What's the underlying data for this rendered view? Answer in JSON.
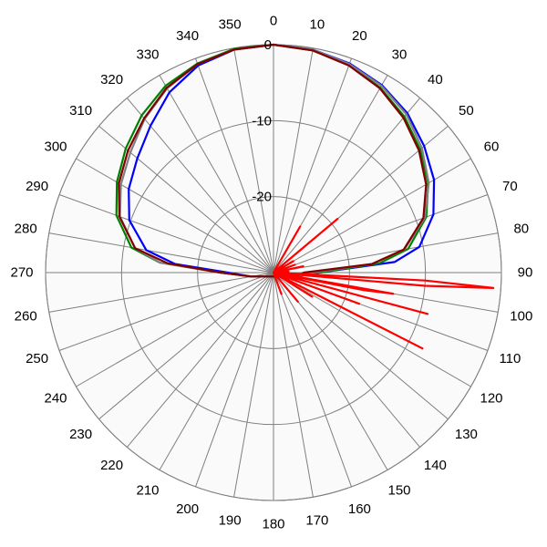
{
  "chart_data": {
    "type": "polar-line",
    "title": "",
    "angular_axis": {
      "unit": "degrees",
      "direction": "clockwise",
      "zero_at": "top",
      "tick_labels": [
        "0",
        "10",
        "20",
        "30",
        "40",
        "50",
        "60",
        "70",
        "80",
        "90",
        "100",
        "110",
        "120",
        "130",
        "140",
        "150",
        "160",
        "170",
        "180",
        "190",
        "200",
        "210",
        "220",
        "230",
        "240",
        "250",
        "260",
        "270",
        "280",
        "290",
        "300",
        "310",
        "320",
        "330",
        "340",
        "350"
      ]
    },
    "radial_axis": {
      "range": [
        -30,
        0
      ],
      "tick_labels": [
        "0",
        "-10",
        "-20"
      ],
      "ticks": [
        0,
        -10,
        -20
      ],
      "grid_rings": [
        0,
        -10,
        -20,
        -30
      ]
    },
    "background_color": "#fafafa",
    "grid": true,
    "series": [
      {
        "color": "#0000ff",
        "points": [
          [
            0,
            0
          ],
          [
            10,
            -0.2
          ],
          [
            20,
            -0.7
          ],
          [
            30,
            -1.5
          ],
          [
            40,
            -2.6
          ],
          [
            50,
            -4.1
          ],
          [
            60,
            -5.6
          ],
          [
            70,
            -7.6
          ],
          [
            80,
            -10.5
          ],
          [
            85,
            -14
          ],
          [
            90,
            -24
          ],
          [
            100,
            -27
          ],
          [
            260,
            -27
          ],
          [
            270,
            -24
          ],
          [
            275,
            -17
          ],
          [
            280,
            -13
          ],
          [
            290,
            -9.8
          ],
          [
            300,
            -8
          ],
          [
            310,
            -6.6
          ],
          [
            320,
            -4.8
          ],
          [
            330,
            -2.6
          ],
          [
            340,
            -1
          ],
          [
            350,
            -0.2
          ],
          [
            360,
            0
          ]
        ]
      },
      {
        "color": "#008000",
        "points": [
          [
            0,
            0
          ],
          [
            10,
            -0.3
          ],
          [
            20,
            -0.9
          ],
          [
            30,
            -1.9
          ],
          [
            40,
            -3.2
          ],
          [
            50,
            -4.8
          ],
          [
            60,
            -6.5
          ],
          [
            70,
            -8.6
          ],
          [
            80,
            -12
          ],
          [
            85,
            -16
          ],
          [
            90,
            -24
          ],
          [
            100,
            -27
          ],
          [
            260,
            -27
          ],
          [
            270,
            -23
          ],
          [
            275,
            -15
          ],
          [
            280,
            -11
          ],
          [
            290,
            -8
          ],
          [
            300,
            -6.2
          ],
          [
            310,
            -4.6
          ],
          [
            320,
            -3
          ],
          [
            330,
            -1.6
          ],
          [
            340,
            -0.7
          ],
          [
            350,
            -0.1
          ],
          [
            360,
            0
          ]
        ]
      },
      {
        "color": "#808080",
        "points": [
          [
            0,
            0
          ],
          [
            10,
            -0.2
          ],
          [
            20,
            -0.8
          ],
          [
            30,
            -1.6
          ],
          [
            40,
            -2.8
          ],
          [
            50,
            -4.5
          ],
          [
            60,
            -6.4
          ],
          [
            70,
            -8.8
          ],
          [
            80,
            -12.5
          ],
          [
            85,
            -17
          ],
          [
            90,
            -25
          ],
          [
            100,
            -27
          ],
          [
            260,
            -27
          ],
          [
            270,
            -23
          ],
          [
            275,
            -15
          ],
          [
            280,
            -11.5
          ],
          [
            290,
            -8.5
          ],
          [
            300,
            -6.8
          ],
          [
            310,
            -5.4
          ],
          [
            320,
            -3.6
          ],
          [
            330,
            -2
          ],
          [
            340,
            -0.8
          ],
          [
            350,
            -0.2
          ],
          [
            360,
            0
          ]
        ]
      },
      {
        "color": "#800000",
        "points": [
          [
            0,
            0
          ],
          [
            10,
            -0.3
          ],
          [
            20,
            -1
          ],
          [
            30,
            -2
          ],
          [
            40,
            -3.4
          ],
          [
            50,
            -5
          ],
          [
            60,
            -6.8
          ],
          [
            70,
            -9
          ],
          [
            80,
            -12.6
          ],
          [
            85,
            -17
          ],
          [
            90,
            -26
          ],
          [
            100,
            -27
          ],
          [
            260,
            -27
          ],
          [
            270,
            -23
          ],
          [
            275,
            -16
          ],
          [
            280,
            -11.5
          ],
          [
            290,
            -8.4
          ],
          [
            300,
            -6.5
          ],
          [
            310,
            -5
          ],
          [
            320,
            -3.5
          ],
          [
            330,
            -1.9
          ],
          [
            340,
            -0.8
          ],
          [
            350,
            -0.2
          ],
          [
            360,
            0
          ]
        ]
      },
      {
        "color": "#ff0000",
        "points": [
          [
            0,
            -30
          ],
          [
            20,
            -30
          ],
          [
            30,
            -23
          ],
          [
            33,
            -30
          ],
          [
            40,
            -30
          ],
          [
            50,
            -19
          ],
          [
            52,
            -30
          ],
          [
            60,
            -27
          ],
          [
            65,
            -30
          ],
          [
            70,
            -27
          ],
          [
            75,
            -30
          ],
          [
            78,
            -26
          ],
          [
            82,
            -30
          ],
          [
            86,
            -28
          ],
          [
            90,
            -30
          ],
          [
            93,
            -10
          ],
          [
            94,
            -1
          ],
          [
            95,
            -10
          ],
          [
            98,
            -30
          ],
          [
            100,
            -14
          ],
          [
            101,
            -18
          ],
          [
            102,
            -30
          ],
          [
            105,
            -9
          ],
          [
            107,
            -30
          ],
          [
            110,
            -18
          ],
          [
            112,
            -30
          ],
          [
            117,
            -8
          ],
          [
            119,
            -30
          ],
          [
            122,
            -24
          ],
          [
            126,
            -30
          ],
          [
            140,
            -25
          ],
          [
            145,
            -30
          ],
          [
            160,
            -27
          ],
          [
            165,
            -30
          ],
          [
            360,
            -30
          ]
        ]
      }
    ]
  }
}
